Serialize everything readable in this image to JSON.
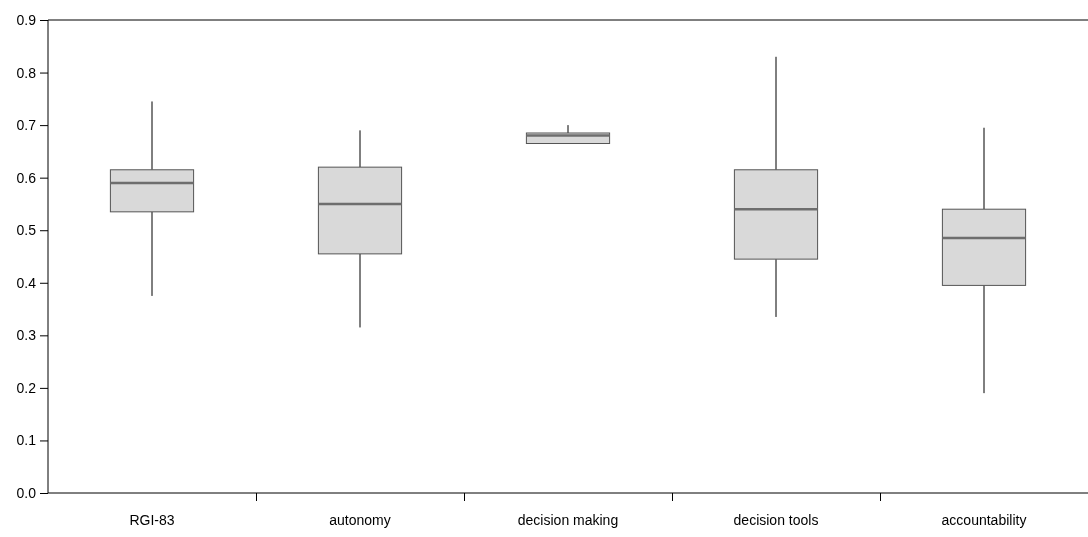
{
  "chart_data": {
    "type": "box",
    "categories": [
      "RGI-83",
      "autonomy",
      "decision making",
      "decision tools",
      "accountability"
    ],
    "boxes": [
      {
        "low": 0.375,
        "q1": 0.535,
        "median": 0.59,
        "q3": 0.615,
        "high": 0.745
      },
      {
        "low": 0.315,
        "q1": 0.455,
        "median": 0.55,
        "q3": 0.62,
        "high": 0.69
      },
      {
        "low": 0.665,
        "q1": 0.665,
        "median": 0.68,
        "q3": 0.685,
        "high": 0.7
      },
      {
        "low": 0.335,
        "q1": 0.445,
        "median": 0.54,
        "q3": 0.615,
        "high": 0.83
      },
      {
        "low": 0.19,
        "q1": 0.395,
        "median": 0.485,
        "q3": 0.54,
        "high": 0.695
      }
    ],
    "color": "#d9d9d9",
    "ylim": [
      0,
      0.9
    ],
    "yticks": [
      {
        "value": 0,
        "label": "0.0"
      },
      {
        "value": 0.1,
        "label": "0.1"
      },
      {
        "value": 0.2,
        "label": "0.2"
      },
      {
        "value": 0.3,
        "label": "0.3"
      },
      {
        "value": 0.4,
        "label": "0.4"
      },
      {
        "value": 0.5,
        "label": "0.5"
      },
      {
        "value": 0.6,
        "label": "0.6"
      },
      {
        "value": 0.7,
        "label": "0.7"
      },
      {
        "value": 0.8,
        "label": "0.8"
      },
      {
        "value": 0.9,
        "label": "0.9"
      }
    ],
    "grid": false
  }
}
